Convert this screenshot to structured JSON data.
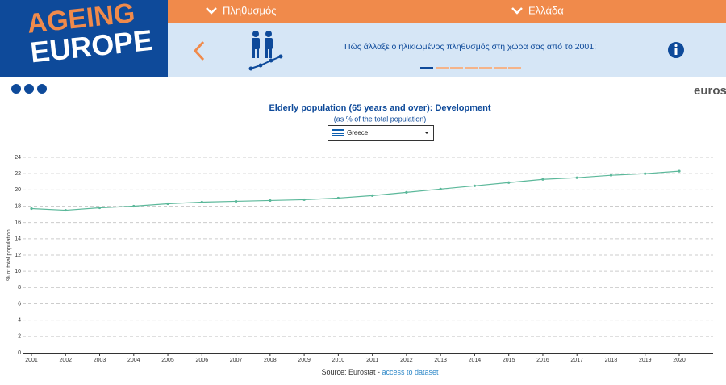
{
  "header": {
    "logo_line1": "AGEING",
    "logo_line2": "EUROPE",
    "menu_topic": "Πληθυσμός",
    "menu_country": "Ελλάδα",
    "question": "Πώς άλλαξε ο ηλικιωμένος πληθυσμός στη χώρα σας από το 2001;",
    "brand": "eurost"
  },
  "chart_data": {
    "type": "line",
    "title": "Elderly population (65 years and over): Development",
    "subtitle": "(as % of the total population)",
    "selector": "Greece",
    "y_label": "% of total population",
    "source": "Source: Eurostat - ",
    "source_link": "access to dataset",
    "categories": [
      "2001",
      "2002",
      "2003",
      "2004",
      "2005",
      "2006",
      "2007",
      "2008",
      "2009",
      "2010",
      "2011",
      "2012",
      "2013",
      "2014",
      "2015",
      "2016",
      "2017",
      "2018",
      "2019",
      "2020"
    ],
    "series": [
      {
        "name": "Greece",
        "color": "#5bb89a",
        "values": [
          17.7,
          17.5,
          17.8,
          18.0,
          18.3,
          18.5,
          18.6,
          18.7,
          18.8,
          19.0,
          19.3,
          19.7,
          20.1,
          20.5,
          20.9,
          21.3,
          21.5,
          21.8,
          22.0,
          22.3
        ]
      }
    ],
    "ylim": [
      0,
      24
    ],
    "yticks": [
      0,
      2,
      4,
      6,
      8,
      10,
      12,
      14,
      16,
      18,
      20,
      22,
      24
    ],
    "grid": true
  }
}
